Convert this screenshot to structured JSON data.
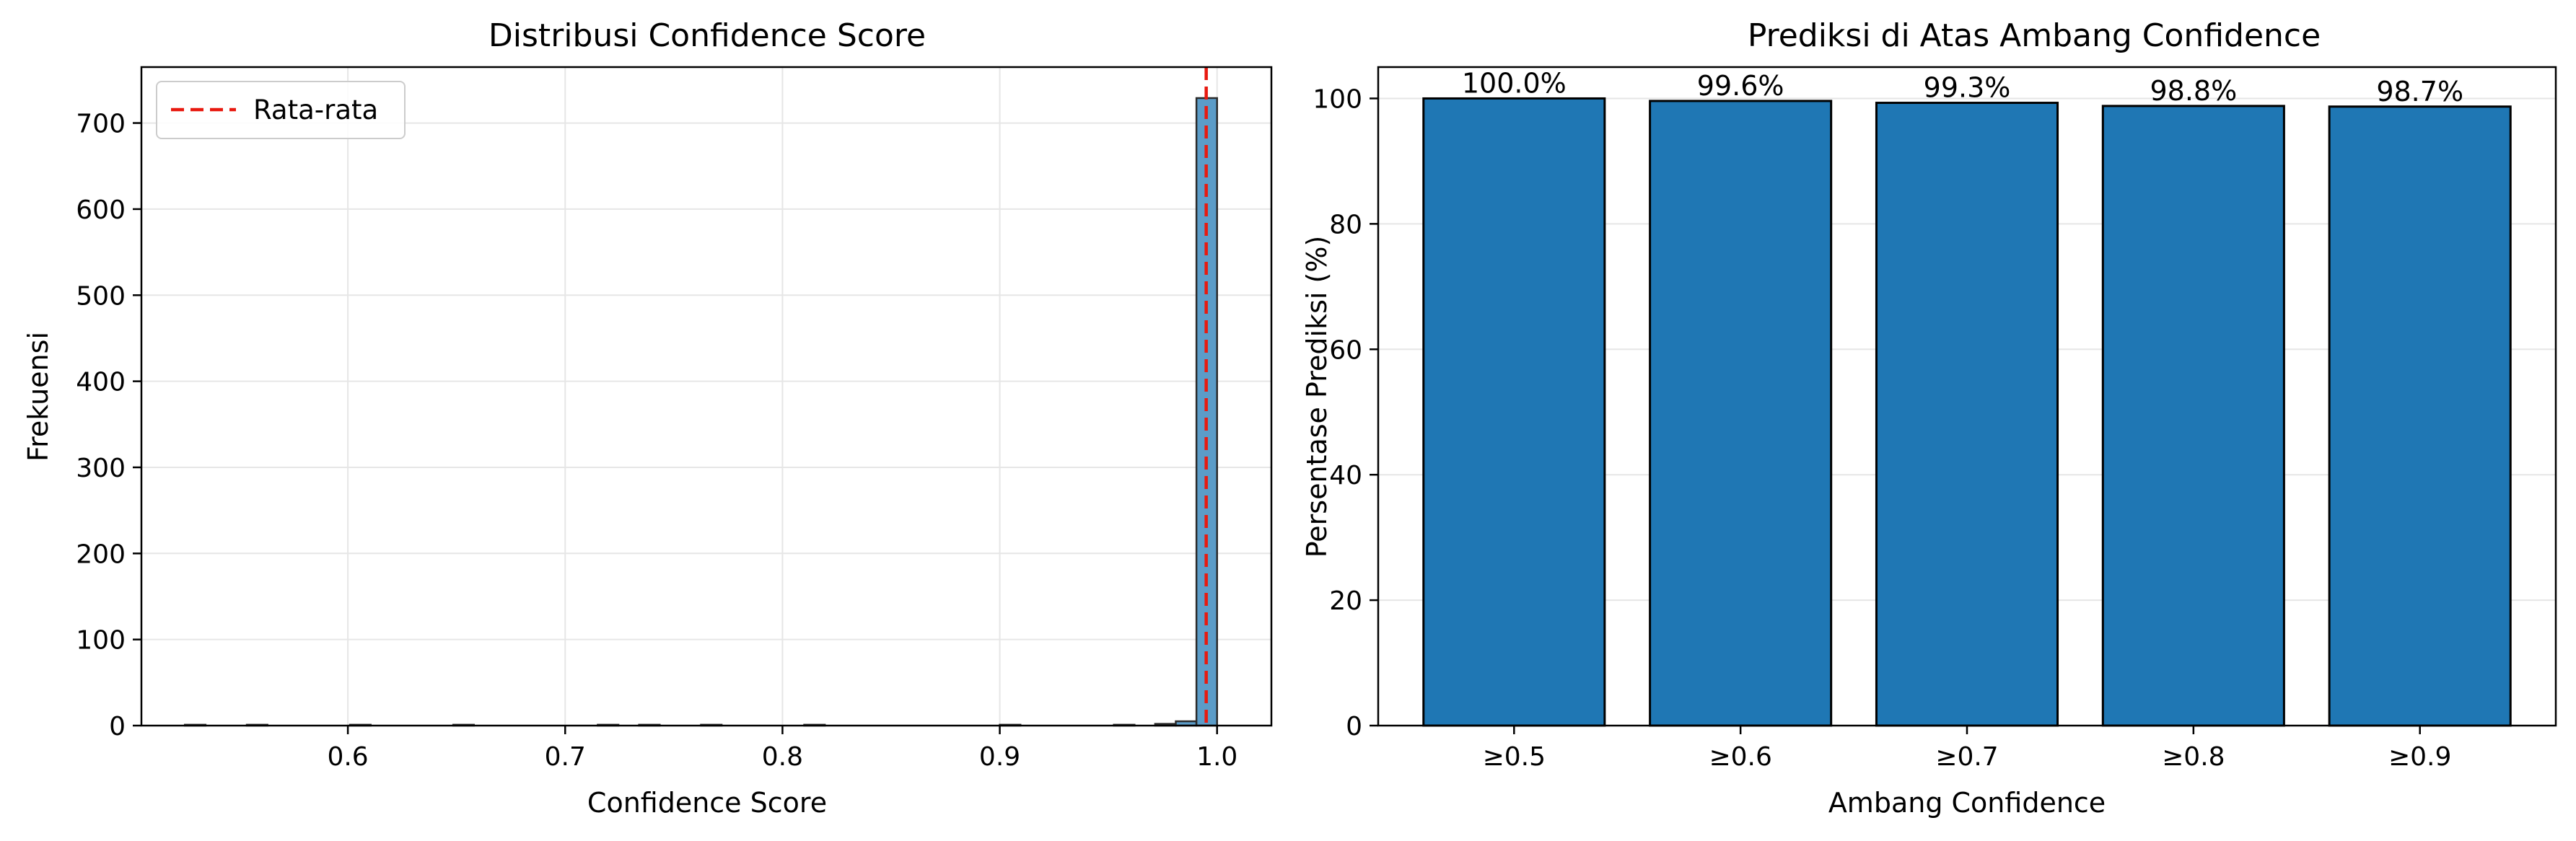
{
  "colors": {
    "hist_fill": "#5b9cc8",
    "hist_edge": "#2b2b2b",
    "bar_fill": "#1f77b4",
    "bar_edge": "#000000",
    "mean_line": "#e8190f",
    "grid": "#e6e6e6"
  },
  "chart_data": [
    {
      "type": "bar",
      "subtype": "histogram",
      "title": "Distribusi Confidence Score",
      "xlabel": "Confidence Score",
      "ylabel": "Frekuensi",
      "xlim": [
        0.505,
        1.025
      ],
      "ylim": [
        0,
        765
      ],
      "xticks": [
        0.6,
        0.7,
        0.8,
        0.9,
        1.0
      ],
      "xtick_labels": [
        "0.6",
        "0.7",
        "0.8",
        "0.9",
        "1.0"
      ],
      "yticks": [
        0,
        100,
        200,
        300,
        400,
        500,
        600,
        700
      ],
      "ytick_labels": [
        "0",
        "100",
        "200",
        "300",
        "400",
        "500",
        "600",
        "700"
      ],
      "grid": true,
      "legend_position": "top-left",
      "legend": [
        {
          "label": "Rata-rata",
          "style": "dashed",
          "color": "#e8190f"
        }
      ],
      "mean": 0.995,
      "bins": [
        {
          "x0": 0.525,
          "x1": 0.5345,
          "count": 1
        },
        {
          "x0": 0.5535,
          "x1": 0.563,
          "count": 1
        },
        {
          "x0": 0.601,
          "x1": 0.6105,
          "count": 1
        },
        {
          "x0": 0.6485,
          "x1": 0.658,
          "count": 1
        },
        {
          "x0": 0.715,
          "x1": 0.7245,
          "count": 1
        },
        {
          "x0": 0.734,
          "x1": 0.7435,
          "count": 1
        },
        {
          "x0": 0.7625,
          "x1": 0.772,
          "count": 1
        },
        {
          "x0": 0.81,
          "x1": 0.8195,
          "count": 1
        },
        {
          "x0": 0.9,
          "x1": 0.9095,
          "count": 1
        },
        {
          "x0": 0.9525,
          "x1": 0.962,
          "count": 1
        },
        {
          "x0": 0.9715,
          "x1": 0.981,
          "count": 2
        },
        {
          "x0": 0.981,
          "x1": 0.9905,
          "count": 5
        },
        {
          "x0": 0.9905,
          "x1": 1.0,
          "count": 729
        }
      ]
    },
    {
      "type": "bar",
      "title": "Prediksi di Atas Ambang Confidence",
      "xlabel": "Ambang Confidence",
      "ylabel": "Persentase Prediksi (%)",
      "ylim": [
        0,
        105
      ],
      "yticks": [
        0,
        20,
        40,
        60,
        80,
        100
      ],
      "ytick_labels": [
        "0",
        "20",
        "40",
        "60",
        "80",
        "100"
      ],
      "grid": true,
      "categories": [
        "≥0.5",
        "≥0.6",
        "≥0.7",
        "≥0.8",
        "≥0.9"
      ],
      "values": [
        100.0,
        99.6,
        99.3,
        98.8,
        98.7
      ],
      "value_labels": [
        "100.0%",
        "99.6%",
        "99.3%",
        "98.8%",
        "98.7%"
      ]
    }
  ]
}
